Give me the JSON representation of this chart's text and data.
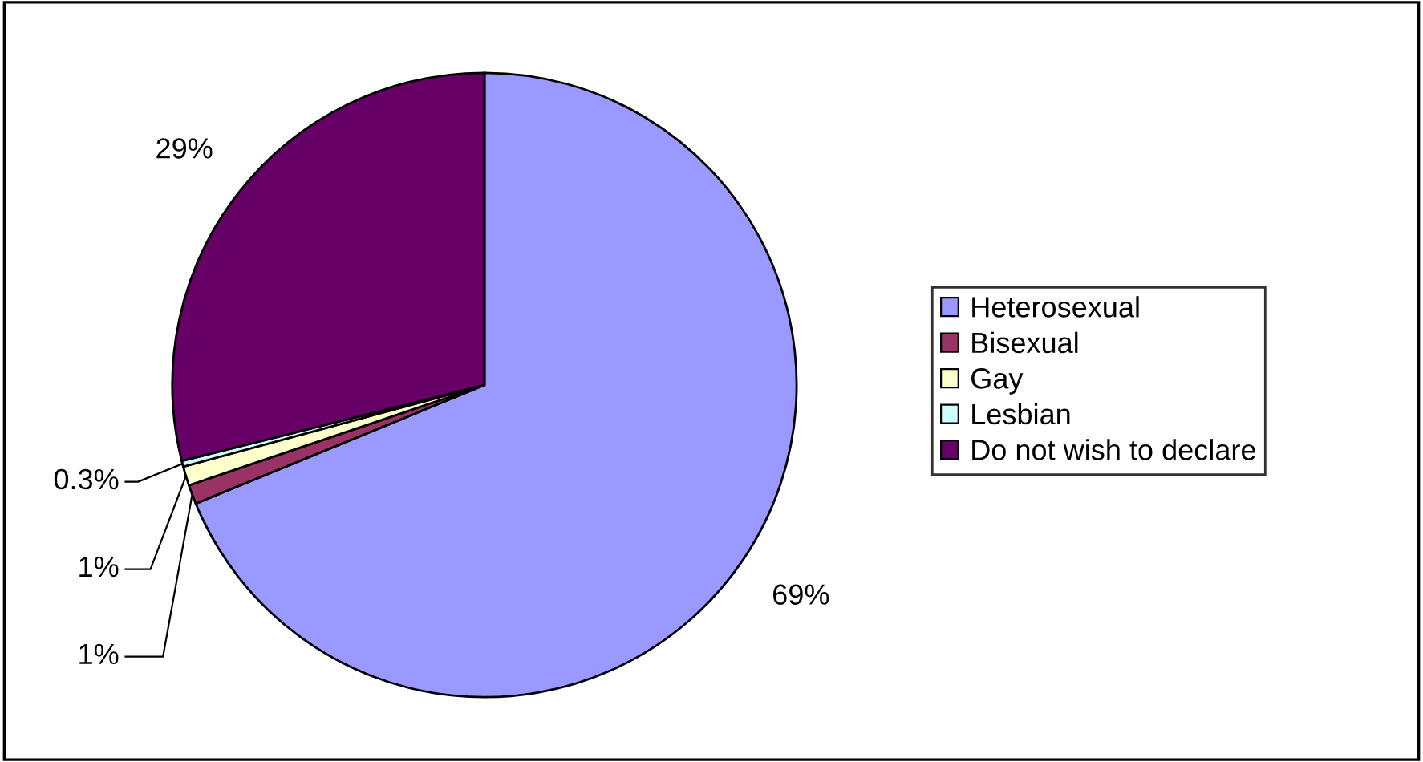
{
  "chart_data": {
    "type": "pie",
    "categories": [
      "Heterosexual",
      "Bisexual",
      "Gay",
      "Lesbian",
      "Do not wish to declare"
    ],
    "values": [
      69,
      1,
      1,
      0.3,
      29
    ],
    "value_labels": [
      "69%",
      "1%",
      "1%",
      "0.3%",
      "29%"
    ],
    "colors": [
      "#9999ff",
      "#993366",
      "#ffffcc",
      "#ccffff",
      "#660066"
    ],
    "legend": "right"
  }
}
